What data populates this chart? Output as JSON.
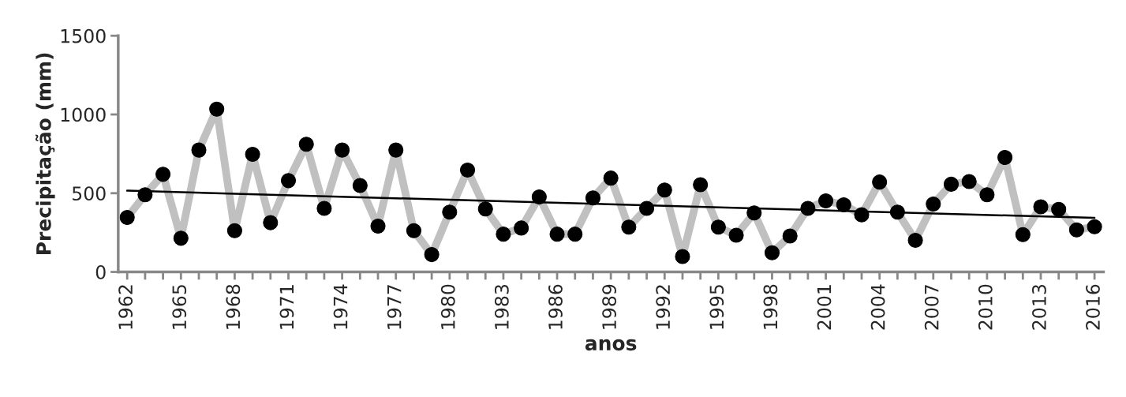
{
  "chart_data": {
    "type": "line",
    "xlabel": "anos",
    "ylabel": "Precipitação (mm)",
    "x": [
      1962,
      1963,
      1964,
      1965,
      1966,
      1967,
      1968,
      1969,
      1970,
      1971,
      1972,
      1973,
      1974,
      1975,
      1976,
      1977,
      1978,
      1979,
      1980,
      1981,
      1982,
      1983,
      1984,
      1985,
      1986,
      1987,
      1988,
      1989,
      1990,
      1991,
      1992,
      1993,
      1994,
      1995,
      1996,
      1997,
      1998,
      1999,
      2000,
      2001,
      2002,
      2003,
      2004,
      2005,
      2006,
      2007,
      2008,
      2009,
      2010,
      2011,
      2012,
      2013,
      2014,
      2015,
      2016
    ],
    "series": [
      {
        "color": "#c0c0c0",
        "marker": "circle",
        "values": [
          346,
          490,
          620,
          214,
          774,
          1034,
          262,
          747,
          313,
          580,
          811,
          404,
          774,
          549,
          291,
          774,
          262,
          110,
          380,
          647,
          400,
          240,
          279,
          476,
          240,
          240,
          470,
          596,
          285,
          404,
          520,
          98,
          554,
          285,
          233,
          375,
          122,
          228,
          404,
          451,
          426,
          363,
          571,
          380,
          201,
          431,
          557,
          574,
          490,
          727,
          237,
          414,
          397,
          267,
          287
        ]
      },
      {
        "color": "#000000",
        "marker": "none",
        "x": [
          1962,
          2016
        ],
        "values": [
          516,
          343
        ]
      }
    ],
    "xlim": [
      1961.5,
      2016.5
    ],
    "xticks": [
      1962,
      {
        "value": 1963,
        "label": null
      },
      {
        "value": 1964,
        "label": null
      },
      1965,
      {
        "value": 1966,
        "label": null
      },
      {
        "value": 1967,
        "label": null
      },
      1968,
      {
        "value": 1969,
        "label": null
      },
      {
        "value": 1970,
        "label": null
      },
      1971,
      {
        "value": 1972,
        "label": null
      },
      {
        "value": 1973,
        "label": null
      },
      1974,
      {
        "value": 1975,
        "label": null
      },
      {
        "value": 1976,
        "label": null
      },
      1977,
      {
        "value": 1978,
        "label": null
      },
      {
        "value": 1979,
        "label": null
      },
      1980,
      {
        "value": 1981,
        "label": null
      },
      {
        "value": 1982,
        "label": null
      },
      1983,
      {
        "value": 1984,
        "label": null
      },
      {
        "value": 1985,
        "label": null
      },
      1986,
      {
        "value": 1987,
        "label": null
      },
      {
        "value": 1988,
        "label": null
      },
      1989,
      {
        "value": 1990,
        "label": null
      },
      {
        "value": 1991,
        "label": null
      },
      1992,
      {
        "value": 1993,
        "label": null
      },
      {
        "value": 1994,
        "label": null
      },
      1995,
      {
        "value": 1996,
        "label": null
      },
      {
        "value": 1997,
        "label": null
      },
      1998,
      {
        "value": 1999,
        "label": null
      },
      {
        "value": 2000,
        "label": null
      },
      2001,
      {
        "value": 2002,
        "label": null
      },
      {
        "value": 2003,
        "label": null
      },
      2004,
      {
        "value": 2005,
        "label": null
      },
      {
        "value": 2006,
        "label": null
      },
      2007,
      {
        "value": 2008,
        "label": null
      },
      {
        "value": 2009,
        "label": null
      },
      2010,
      {
        "value": 2011,
        "label": null
      },
      {
        "value": 2012,
        "label": null
      },
      2013,
      {
        "value": 2014,
        "label": null
      },
      {
        "value": 2015,
        "label": null
      },
      2016
    ],
    "ylim": [
      0,
      1500
    ],
    "yticks": [
      0,
      500,
      1000,
      1500
    ],
    "grid": false,
    "legend": false
  }
}
